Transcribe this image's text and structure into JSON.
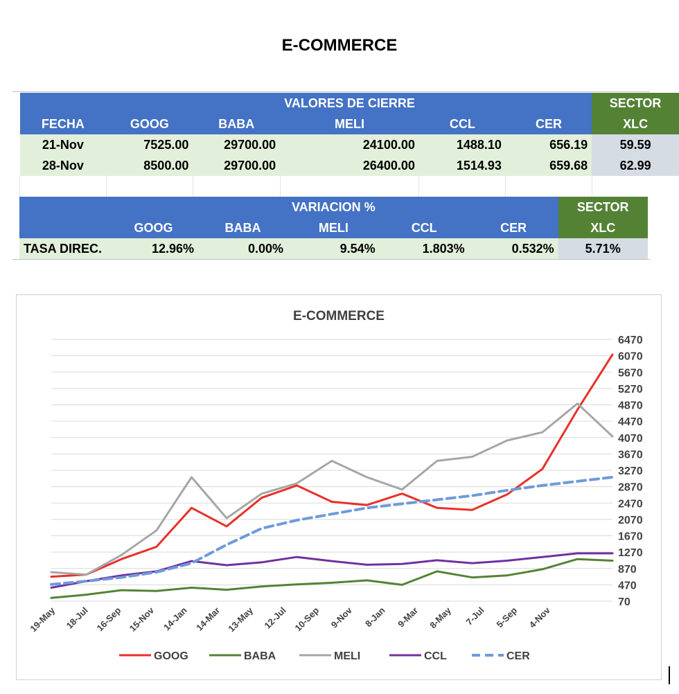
{
  "page_title": "E-COMMERCE",
  "closing_table": {
    "title": "VALORES DE CIERRE",
    "sector_label": "SECTOR",
    "columns": [
      "FECHA",
      "GOOG",
      "BABA",
      "MELI",
      "CCL",
      "CER",
      "XLC"
    ],
    "rows": [
      [
        "21-Nov",
        "7525.00",
        "29700.00",
        "24100.00",
        "1488.10",
        "656.19",
        "59.59"
      ],
      [
        "28-Nov",
        "8500.00",
        "29700.00",
        "26400.00",
        "1514.93",
        "659.68",
        "62.99"
      ]
    ]
  },
  "variation_table": {
    "title": "VARIACION %",
    "sector_label": "SECTOR",
    "columns": [
      "",
      "GOOG",
      "BABA",
      "MELI",
      "CCL",
      "CER",
      "XLC"
    ],
    "row": [
      "TASA DIREC.",
      "12.96%",
      "0.00%",
      "9.54%",
      "1.803%",
      "0.532%",
      "5.71%"
    ]
  },
  "chart_data": {
    "type": "line",
    "title": "E-COMMERCE",
    "xlabel": "",
    "ylabel": "",
    "x_ticks": [
      "19-May",
      "18-Jul",
      "16-Sep",
      "15-Nov",
      "14-Jan",
      "14-Mar",
      "13-May",
      "12-Jul",
      "10-Sep",
      "9-Nov",
      "8-Jan",
      "9-Mar",
      "8-May",
      "7-Jul",
      "5-Sep",
      "4-Nov"
    ],
    "y_ticks": [
      70,
      470,
      870,
      1270,
      1670,
      2070,
      2470,
      2870,
      3270,
      3670,
      4070,
      4470,
      4870,
      5270,
      5670,
      6070,
      6470
    ],
    "ylim": [
      70,
      6470
    ],
    "grid": true,
    "legend_position": "bottom",
    "x_index": [
      0,
      1,
      2,
      3,
      4,
      5,
      6,
      7,
      8,
      9,
      10,
      11,
      12,
      13,
      14,
      15,
      16
    ],
    "series": [
      {
        "name": "GOOG",
        "color": "#e8302a",
        "dashed": false,
        "values": [
          670,
          720,
          1100,
          1400,
          2350,
          1900,
          2600,
          2900,
          2500,
          2420,
          2700,
          2350,
          2300,
          2680,
          3300,
          4750,
          6100
        ]
      },
      {
        "name": "BABA",
        "color": "#548235",
        "dashed": false,
        "values": [
          150,
          230,
          340,
          320,
          400,
          350,
          430,
          480,
          520,
          580,
          470,
          800,
          650,
          700,
          850,
          1100,
          1060
        ]
      },
      {
        "name": "MELI",
        "color": "#a6a6a6",
        "dashed": false,
        "values": [
          780,
          720,
          1200,
          1800,
          3100,
          2100,
          2700,
          2950,
          3500,
          3100,
          2800,
          3500,
          3600,
          4000,
          4200,
          4900,
          4100
        ]
      },
      {
        "name": "CCL",
        "color": "#7030a0",
        "dashed": false,
        "values": [
          400,
          560,
          700,
          800,
          1050,
          950,
          1020,
          1150,
          1050,
          960,
          980,
          1070,
          1000,
          1060,
          1150,
          1240,
          1240
        ]
      },
      {
        "name": "CER",
        "color": "#6d9bd9",
        "dashed": true,
        "values": [
          480,
          560,
          650,
          780,
          1000,
          1450,
          1850,
          2050,
          2200,
          2350,
          2450,
          2550,
          2650,
          2780,
          2900,
          3000,
          3100
        ]
      }
    ]
  }
}
